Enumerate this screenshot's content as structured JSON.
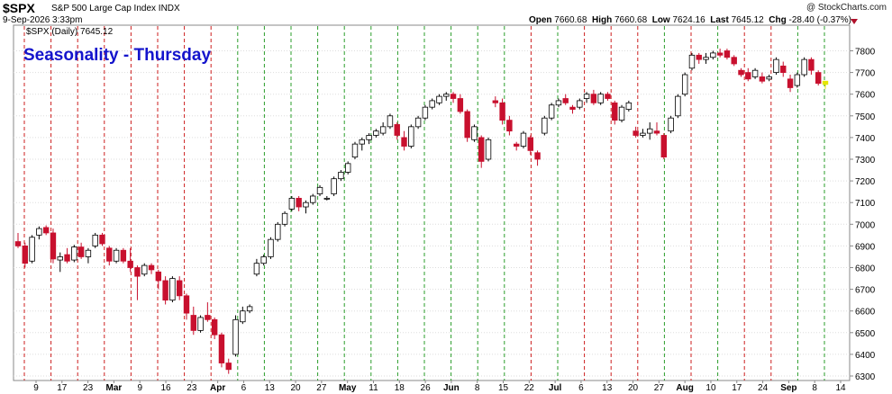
{
  "header": {
    "ticker": "$SPX",
    "description": "S&P 500 Large Cap Index INDX",
    "date_time": "9-Sep-2026 3:33pm",
    "open_label": "Open",
    "open": "7660.68",
    "high_label": "High",
    "high": "7660.68",
    "low_label": "Low",
    "low": "7624.16",
    "last_label": "Last",
    "last": "7645.12",
    "chg_label": "Chg",
    "chg": "-28.40 (-0.37%)",
    "watermark": "@ StockCharts.com"
  },
  "chart_data": {
    "type": "candlestick",
    "title": "Seasonality - Thursday",
    "legend": "$SPX (Daily) 7645.12",
    "ylim": [
      6280,
      7830
    ],
    "y_ticks": [
      6300,
      6400,
      6500,
      6600,
      6700,
      6800,
      6900,
      7000,
      7100,
      7200,
      7300,
      7400,
      7500,
      7600,
      7700,
      7800
    ],
    "x_ticks": [
      "9",
      "17",
      "23",
      "Mar",
      "9",
      "16",
      "23",
      "Apr",
      "6",
      "13",
      "20",
      "27",
      "May",
      "11",
      "18",
      "26",
      "Jun",
      "8",
      "15",
      "22",
      "Jul",
      "6",
      "13",
      "20",
      "27",
      "Aug",
      "10",
      "17",
      "24",
      "Sep",
      "8",
      "14"
    ],
    "x_tick_bold": [
      false,
      false,
      false,
      true,
      false,
      false,
      false,
      true,
      false,
      false,
      false,
      false,
      true,
      false,
      false,
      false,
      true,
      false,
      false,
      false,
      true,
      false,
      false,
      false,
      false,
      true,
      false,
      false,
      false,
      true,
      false,
      false
    ],
    "thursday_colors": {
      "up": "#2a9d2a",
      "down": "#cc1e1e"
    },
    "thursday_lines": [
      "down",
      "down",
      "down",
      "down",
      "down",
      "down",
      "down",
      "down",
      "up",
      "up",
      "up",
      "up",
      "up",
      "up",
      "up",
      "up",
      "up",
      "up",
      "up",
      "down",
      "up",
      "down",
      "down",
      "down",
      "up",
      "down",
      "up",
      "down",
      "down",
      "up",
      "up"
    ],
    "candle_colors": {
      "up": "#ffffff",
      "down": "#c8102e",
      "black": "#000000",
      "last": "#e6e600"
    },
    "candles": [
      {
        "o": 6920,
        "h": 6960,
        "l": 6890,
        "c": 6900
      },
      {
        "o": 6900,
        "h": 6915,
        "l": 6800,
        "c": 6820
      },
      {
        "o": 6830,
        "h": 6950,
        "l": 6820,
        "c": 6940
      },
      {
        "o": 6950,
        "h": 6990,
        "l": 6930,
        "c": 6980
      },
      {
        "o": 6985,
        "h": 6995,
        "l": 6950,
        "c": 6960
      },
      {
        "o": 6960,
        "h": 6980,
        "l": 6820,
        "c": 6840
      },
      {
        "o": 6835,
        "h": 6870,
        "l": 6780,
        "c": 6850
      },
      {
        "o": 6860,
        "h": 6890,
        "l": 6820,
        "c": 6830
      },
      {
        "o": 6835,
        "h": 6905,
        "l": 6825,
        "c": 6895
      },
      {
        "o": 6895,
        "h": 6915,
        "l": 6840,
        "c": 6850
      },
      {
        "o": 6850,
        "h": 6890,
        "l": 6820,
        "c": 6880
      },
      {
        "o": 6900,
        "h": 6960,
        "l": 6890,
        "c": 6950
      },
      {
        "o": 6950,
        "h": 6960,
        "l": 6900,
        "c": 6910
      },
      {
        "o": 6890,
        "h": 6900,
        "l": 6810,
        "c": 6830
      },
      {
        "o": 6830,
        "h": 6890,
        "l": 6820,
        "c": 6880
      },
      {
        "o": 6880,
        "h": 6890,
        "l": 6820,
        "c": 6830
      },
      {
        "o": 6830,
        "h": 6890,
        "l": 6780,
        "c": 6800
      },
      {
        "o": 6800,
        "h": 6810,
        "l": 6650,
        "c": 6760
      },
      {
        "o": 6770,
        "h": 6820,
        "l": 6760,
        "c": 6810
      },
      {
        "o": 6810,
        "h": 6820,
        "l": 6770,
        "c": 6790
      },
      {
        "o": 6780,
        "h": 6790,
        "l": 6700,
        "c": 6740
      },
      {
        "o": 6740,
        "h": 6760,
        "l": 6630,
        "c": 6650
      },
      {
        "o": 6650,
        "h": 6760,
        "l": 6640,
        "c": 6750
      },
      {
        "o": 6740,
        "h": 6760,
        "l": 6650,
        "c": 6670
      },
      {
        "o": 6670,
        "h": 6680,
        "l": 6560,
        "c": 6590
      },
      {
        "o": 6580,
        "h": 6620,
        "l": 6490,
        "c": 6510
      },
      {
        "o": 6510,
        "h": 6580,
        "l": 6500,
        "c": 6570
      },
      {
        "o": 6580,
        "h": 6640,
        "l": 6550,
        "c": 6560
      },
      {
        "o": 6560,
        "h": 6570,
        "l": 6470,
        "c": 6490
      },
      {
        "o": 6490,
        "h": 6500,
        "l": 6340,
        "c": 6360
      },
      {
        "o": 6360,
        "h": 6380,
        "l": 6310,
        "c": 6330
      },
      {
        "o": 6400,
        "h": 6580,
        "l": 6390,
        "c": 6560
      },
      {
        "o": 6550,
        "h": 6620,
        "l": 6540,
        "c": 6600
      },
      {
        "o": 6600,
        "h": 6630,
        "l": 6590,
        "c": 6620
      },
      {
        "o": 6770,
        "h": 6840,
        "l": 6760,
        "c": 6820
      },
      {
        "o": 6820,
        "h": 6860,
        "l": 6810,
        "c": 6850
      },
      {
        "o": 6850,
        "h": 6940,
        "l": 6840,
        "c": 6930
      },
      {
        "o": 6930,
        "h": 7010,
        "l": 6920,
        "c": 7000
      },
      {
        "o": 7000,
        "h": 7060,
        "l": 6990,
        "c": 7050
      },
      {
        "o": 7070,
        "h": 7130,
        "l": 7060,
        "c": 7120
      },
      {
        "o": 7120,
        "h": 7130,
        "l": 7060,
        "c": 7080
      },
      {
        "o": 7080,
        "h": 7110,
        "l": 7050,
        "c": 7100
      },
      {
        "o": 7100,
        "h": 7140,
        "l": 7090,
        "c": 7130
      },
      {
        "o": 7140,
        "h": 7180,
        "l": 7130,
        "c": 7170
      },
      {
        "o": 7120,
        "h": 7130,
        "l": 7110,
        "c": 7120
      },
      {
        "o": 7140,
        "h": 7220,
        "l": 7130,
        "c": 7210
      },
      {
        "o": 7210,
        "h": 7250,
        "l": 7200,
        "c": 7240
      },
      {
        "o": 7240,
        "h": 7290,
        "l": 7230,
        "c": 7280
      },
      {
        "o": 7310,
        "h": 7380,
        "l": 7300,
        "c": 7370
      },
      {
        "o": 7370,
        "h": 7400,
        "l": 7340,
        "c": 7390
      },
      {
        "o": 7390,
        "h": 7420,
        "l": 7370,
        "c": 7410
      },
      {
        "o": 7410,
        "h": 7440,
        "l": 7400,
        "c": 7430
      },
      {
        "o": 7420,
        "h": 7470,
        "l": 7410,
        "c": 7450
      },
      {
        "o": 7450,
        "h": 7510,
        "l": 7440,
        "c": 7500
      },
      {
        "o": 7460,
        "h": 7470,
        "l": 7390,
        "c": 7410
      },
      {
        "o": 7400,
        "h": 7430,
        "l": 7340,
        "c": 7360
      },
      {
        "o": 7360,
        "h": 7460,
        "l": 7350,
        "c": 7450
      },
      {
        "o": 7450,
        "h": 7500,
        "l": 7440,
        "c": 7490
      },
      {
        "o": 7490,
        "h": 7550,
        "l": 7480,
        "c": 7540
      },
      {
        "o": 7540,
        "h": 7580,
        "l": 7530,
        "c": 7570
      },
      {
        "o": 7560,
        "h": 7600,
        "l": 7550,
        "c": 7590
      },
      {
        "o": 7590,
        "h": 7610,
        "l": 7570,
        "c": 7600
      },
      {
        "o": 7600,
        "h": 7610,
        "l": 7560,
        "c": 7580
      },
      {
        "o": 7580,
        "h": 7600,
        "l": 7510,
        "c": 7520
      },
      {
        "o": 7520,
        "h": 7530,
        "l": 7380,
        "c": 7400
      },
      {
        "o": 7390,
        "h": 7460,
        "l": 7380,
        "c": 7450
      },
      {
        "o": 7400,
        "h": 7410,
        "l": 7260,
        "c": 7290
      },
      {
        "o": 7300,
        "h": 7400,
        "l": 7290,
        "c": 7390
      },
      {
        "o": 7570,
        "h": 7590,
        "l": 7540,
        "c": 7560
      },
      {
        "o": 7560,
        "h": 7580,
        "l": 7460,
        "c": 7480
      },
      {
        "o": 7480,
        "h": 7500,
        "l": 7410,
        "c": 7430
      },
      {
        "o": 7370,
        "h": 7380,
        "l": 7340,
        "c": 7360
      },
      {
        "o": 7360,
        "h": 7430,
        "l": 7350,
        "c": 7420
      },
      {
        "o": 7400,
        "h": 7410,
        "l": 7320,
        "c": 7340
      },
      {
        "o": 7330,
        "h": 7340,
        "l": 7270,
        "c": 7300
      },
      {
        "o": 7420,
        "h": 7500,
        "l": 7410,
        "c": 7490
      },
      {
        "o": 7490,
        "h": 7560,
        "l": 7480,
        "c": 7550
      },
      {
        "o": 7550,
        "h": 7580,
        "l": 7540,
        "c": 7570
      },
      {
        "o": 7580,
        "h": 7600,
        "l": 7550,
        "c": 7560
      },
      {
        "o": 7540,
        "h": 7550,
        "l": 7510,
        "c": 7530
      },
      {
        "o": 7540,
        "h": 7580,
        "l": 7530,
        "c": 7570
      },
      {
        "o": 7580,
        "h": 7610,
        "l": 7560,
        "c": 7600
      },
      {
        "o": 7600,
        "h": 7620,
        "l": 7550,
        "c": 7560
      },
      {
        "o": 7560,
        "h": 7610,
        "l": 7550,
        "c": 7600
      },
      {
        "o": 7600,
        "h": 7610,
        "l": 7570,
        "c": 7580
      },
      {
        "o": 7560,
        "h": 7570,
        "l": 7460,
        "c": 7480
      },
      {
        "o": 7480,
        "h": 7550,
        "l": 7470,
        "c": 7540
      },
      {
        "o": 7530,
        "h": 7570,
        "l": 7520,
        "c": 7560
      },
      {
        "o": 7430,
        "h": 7450,
        "l": 7400,
        "c": 7410
      },
      {
        "o": 7410,
        "h": 7440,
        "l": 7400,
        "c": 7420
      },
      {
        "o": 7420,
        "h": 7470,
        "l": 7390,
        "c": 7440
      },
      {
        "o": 7430,
        "h": 7470,
        "l": 7410,
        "c": 7420
      },
      {
        "o": 7410,
        "h": 7420,
        "l": 7300,
        "c": 7310
      },
      {
        "o": 7430,
        "h": 7500,
        "l": 7420,
        "c": 7490
      },
      {
        "o": 7500,
        "h": 7600,
        "l": 7490,
        "c": 7590
      },
      {
        "o": 7600,
        "h": 7700,
        "l": 7590,
        "c": 7690
      },
      {
        "o": 7720,
        "h": 7790,
        "l": 7710,
        "c": 7780
      },
      {
        "o": 7780,
        "h": 7790,
        "l": 7740,
        "c": 7760
      },
      {
        "o": 7760,
        "h": 7790,
        "l": 7740,
        "c": 7770
      },
      {
        "o": 7770,
        "h": 7800,
        "l": 7760,
        "c": 7790
      },
      {
        "o": 7790,
        "h": 7810,
        "l": 7770,
        "c": 7780
      },
      {
        "o": 7800,
        "h": 7810,
        "l": 7760,
        "c": 7770
      },
      {
        "o": 7770,
        "h": 7780,
        "l": 7730,
        "c": 7740
      },
      {
        "o": 7710,
        "h": 7720,
        "l": 7680,
        "c": 7690
      },
      {
        "o": 7700,
        "h": 7720,
        "l": 7660,
        "c": 7670
      },
      {
        "o": 7680,
        "h": 7720,
        "l": 7670,
        "c": 7710
      },
      {
        "o": 7680,
        "h": 7700,
        "l": 7650,
        "c": 7660
      },
      {
        "o": 7670,
        "h": 7690,
        "l": 7660,
        "c": 7680
      },
      {
        "o": 7700,
        "h": 7770,
        "l": 7690,
        "c": 7760
      },
      {
        "o": 7730,
        "h": 7750,
        "l": 7680,
        "c": 7700
      },
      {
        "o": 7670,
        "h": 7690,
        "l": 7610,
        "c": 7630
      },
      {
        "o": 7640,
        "h": 7700,
        "l": 7630,
        "c": 7690
      },
      {
        "o": 7690,
        "h": 7770,
        "l": 7680,
        "c": 7760
      },
      {
        "o": 7760,
        "h": 7770,
        "l": 7690,
        "c": 7710
      },
      {
        "o": 7700,
        "h": 7710,
        "l": 7640,
        "c": 7650
      },
      {
        "o": 7660,
        "h": 7660,
        "l": 7624,
        "c": 7645
      }
    ]
  }
}
